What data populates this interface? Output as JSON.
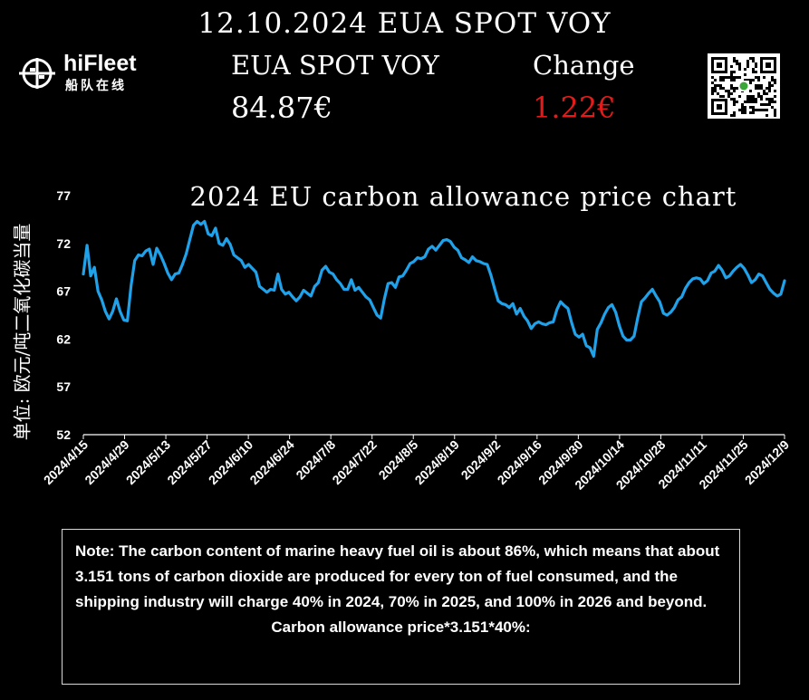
{
  "header": {
    "headline": "12.10.2024 EUA SPOT VOY",
    "spot_label": "EUA SPOT VOY",
    "spot_price": "84.87€",
    "change_label": "Change",
    "change_value": "1.22€",
    "change_color": "#e41b1b"
  },
  "logo": {
    "name": "hiFleet",
    "sub": "船队在线",
    "icon": "globe-ship-icon"
  },
  "qr": {
    "icon": "qr-code-icon"
  },
  "chart_data": {
    "type": "line",
    "title": "2024 EU carbon allowance price chart",
    "ylabel": "单位: 欧元/吨二氧化碳当量",
    "xlabel": "",
    "ylim": [
      52,
      77
    ],
    "y_ticks": [
      "52",
      "57",
      "62",
      "67",
      "72",
      "77"
    ],
    "x_tick_labels": [
      "2024/4/15",
      "2024/4/29",
      "2024/5/13",
      "2024/5/27",
      "2024/6/10",
      "2024/6/24",
      "2024/7/8",
      "2024/7/22",
      "2024/8/5",
      "2024/8/19",
      "2024/9/2",
      "2024/9/16",
      "2024/9/30",
      "2024/10/14",
      "2024/10/28",
      "2024/11/11",
      "2024/11/25",
      "2024/12/9"
    ],
    "series_color": "#1fa2ea",
    "grid": false,
    "series": [
      {
        "values": [
          68.8,
          71.8,
          68.6,
          69.5,
          67.0,
          66.1,
          64.9,
          64.1,
          64.9,
          66.2,
          64.9,
          64.0,
          63.9,
          67.6,
          70.2,
          70.8,
          70.7,
          71.2,
          71.4,
          69.8,
          71.5,
          70.8,
          69.9,
          68.9,
          68.2,
          68.8,
          68.9,
          69.8,
          70.9,
          72.4,
          73.9,
          74.3,
          74.0,
          74.3,
          73.0,
          72.8,
          73.6,
          72.0,
          71.8,
          72.5,
          71.9,
          70.8,
          70.5,
          70.2,
          69.5,
          69.8,
          69.4,
          69.0,
          67.5,
          67.2,
          66.9,
          67.2,
          67.1,
          68.8,
          67.2,
          66.7,
          66.9,
          66.4,
          66.0,
          66.4,
          67.1,
          66.8,
          66.5,
          67.5,
          67.9,
          69.2,
          69.6,
          69.0,
          68.8,
          68.2,
          67.8,
          67.2,
          67.2,
          68.2,
          67.1,
          67.4,
          66.9,
          66.4,
          66.1,
          65.3,
          64.5,
          64.2,
          66.2,
          67.8,
          67.9,
          67.4,
          68.5,
          68.6,
          69.2,
          69.9,
          70.1,
          70.5,
          70.4,
          70.6,
          71.4,
          71.7,
          71.3,
          71.8,
          72.3,
          72.4,
          72.2,
          71.6,
          71.3,
          70.5,
          70.3,
          70.0,
          70.6,
          70.2,
          70.1,
          69.9,
          69.8,
          68.7,
          67.3,
          66.0,
          65.7,
          65.6,
          65.3,
          65.7,
          64.6,
          65.2,
          64.4,
          63.9,
          63.1,
          63.6,
          63.8,
          63.6,
          63.5,
          63.7,
          63.8,
          65.1,
          65.9,
          65.5,
          65.2,
          63.7,
          62.5,
          62.2,
          62.5,
          61.3,
          61.1,
          60.2,
          63.0,
          63.7,
          64.6,
          65.3,
          65.6,
          64.8,
          63.4,
          62.3,
          61.9,
          61.9,
          62.3,
          64.2,
          65.9,
          66.3,
          66.8,
          67.2,
          66.5,
          65.9,
          64.7,
          64.5,
          64.8,
          65.3,
          66.1,
          66.4,
          67.3,
          67.9,
          68.3,
          68.4,
          68.3,
          67.8,
          68.1,
          68.9,
          69.1,
          69.7,
          69.2,
          68.4,
          68.6,
          69.1,
          69.5,
          69.8,
          69.4,
          68.7,
          67.9,
          68.2,
          68.8,
          68.6,
          67.9,
          67.2,
          66.8,
          66.5,
          66.7,
          68.1
        ]
      }
    ]
  },
  "note": {
    "text": "Note: The carbon content of marine heavy fuel oil is about 86%, which means that about 3.151 tons of carbon dioxide are produced for every ton of fuel consumed, and the shipping industry will charge 40% in 2024, 70% in 2025, and 100% in 2026 and beyond.",
    "formula": "Carbon allowance price*3.151*40%:"
  }
}
